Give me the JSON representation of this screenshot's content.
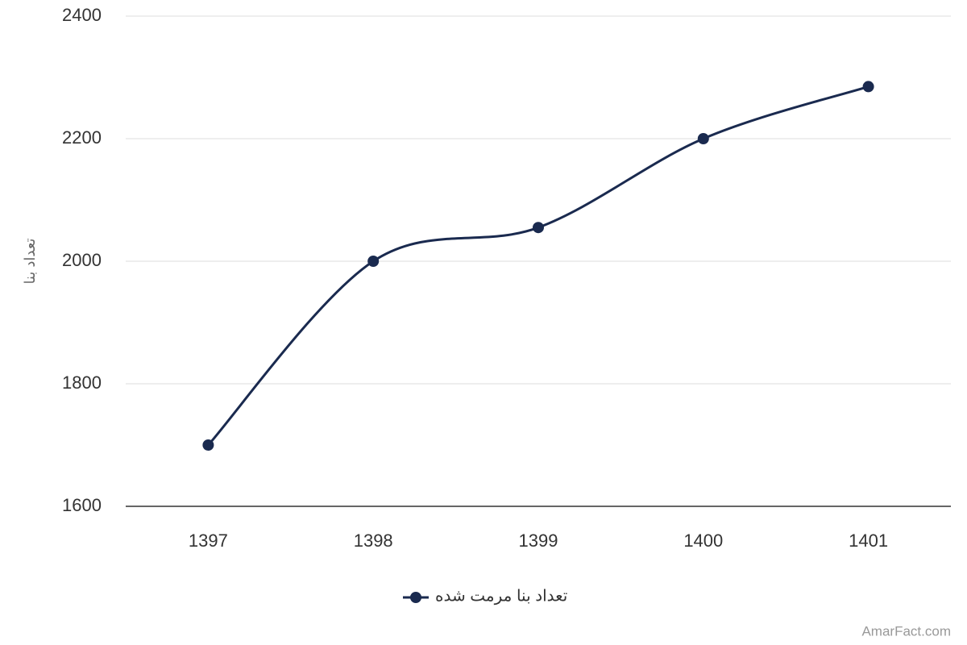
{
  "chart_data": {
    "type": "line",
    "y_label": "تعداد بنا",
    "categories": [
      "1397",
      "1398",
      "1399",
      "1400",
      "1401"
    ],
    "series": [
      {
        "name": "تعداد بنا مرمت شده",
        "color": "#1a2a4f",
        "values": [
          1700,
          2000,
          2055,
          2200,
          2285
        ]
      }
    ],
    "ylim": [
      1600,
      2400
    ],
    "yticks": [
      1600,
      1800,
      2000,
      2200,
      2400
    ],
    "grid": true,
    "legend": "bottom",
    "watermark": "AmarFact.com"
  }
}
